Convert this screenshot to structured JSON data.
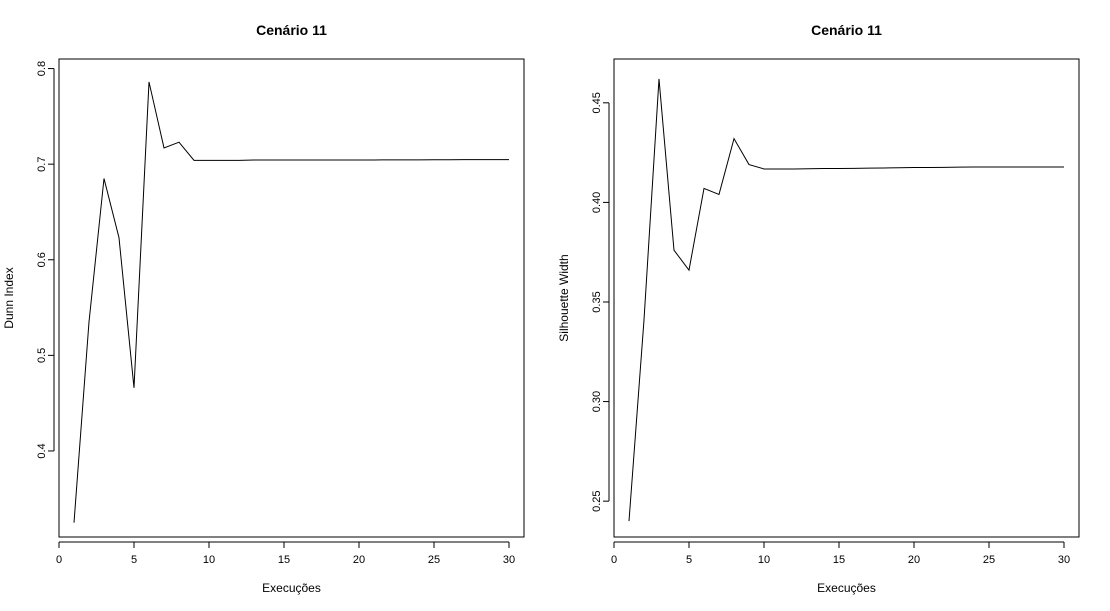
{
  "chart_data": [
    {
      "type": "line",
      "title": "Cenário 11",
      "xlabel": "Execuções",
      "ylabel": "Dunn Index",
      "xlim": [
        0,
        31
      ],
      "ylim": [
        0.31,
        0.81
      ],
      "xticks": [
        0,
        5,
        10,
        15,
        20,
        25,
        30
      ],
      "yticks": [
        0.4,
        0.5,
        0.6,
        0.7,
        0.8
      ],
      "ytick_labels": [
        "0.4",
        "0.5",
        "0.6",
        "0.7",
        "0.8"
      ],
      "x": [
        1,
        2,
        3,
        4,
        5,
        6,
        7,
        8,
        9,
        10,
        11,
        12,
        13,
        14,
        15,
        16,
        17,
        18,
        19,
        20,
        21,
        22,
        23,
        24,
        25,
        26,
        27,
        28,
        29,
        30
      ],
      "values": [
        0.325,
        0.535,
        0.685,
        0.623,
        0.466,
        0.786,
        0.717,
        0.723,
        0.704,
        0.704,
        0.704,
        0.704,
        0.7043,
        0.7043,
        0.7043,
        0.7043,
        0.7043,
        0.7044,
        0.7044,
        0.7044,
        0.7044,
        0.7045,
        0.7045,
        0.7045,
        0.7046,
        0.7046,
        0.7047,
        0.7047,
        0.7047,
        0.7047
      ]
    },
    {
      "type": "line",
      "title": "Cenário 11",
      "xlabel": "Execuções",
      "ylabel": "Silhouette Width",
      "xlim": [
        0,
        31
      ],
      "ylim": [
        0.232,
        0.472
      ],
      "xticks": [
        0,
        5,
        10,
        15,
        20,
        25,
        30
      ],
      "yticks": [
        0.25,
        0.3,
        0.35,
        0.4,
        0.45
      ],
      "ytick_labels": [
        "0.25",
        "0.30",
        "0.35",
        "0.40",
        "0.45"
      ],
      "x": [
        1,
        2,
        3,
        4,
        5,
        6,
        7,
        8,
        9,
        10,
        11,
        12,
        13,
        14,
        15,
        16,
        17,
        18,
        19,
        20,
        21,
        22,
        23,
        24,
        25,
        26,
        27,
        28,
        29,
        30
      ],
      "values": [
        0.24,
        0.341,
        0.462,
        0.376,
        0.366,
        0.407,
        0.404,
        0.432,
        0.419,
        0.4168,
        0.4168,
        0.4168,
        0.4169,
        0.417,
        0.417,
        0.4171,
        0.4172,
        0.4173,
        0.4174,
        0.4175,
        0.4175,
        0.4176,
        0.4177,
        0.4178,
        0.4178,
        0.4178,
        0.4178,
        0.4178,
        0.4178,
        0.4178
      ]
    }
  ]
}
